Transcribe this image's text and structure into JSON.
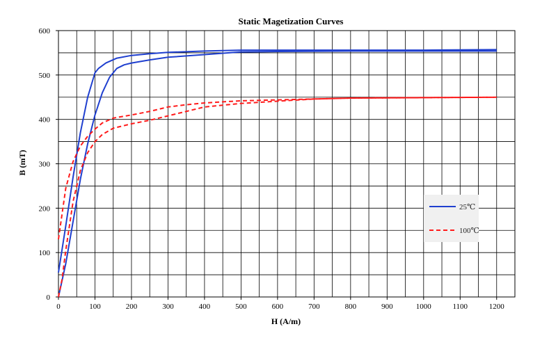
{
  "chart_data": {
    "type": "line",
    "title": "Static Magetization Curves",
    "xlabel": "H (A/m)",
    "ylabel": "B (mT)",
    "xlim": [
      0,
      1250
    ],
    "ylim": [
      0,
      600
    ],
    "x_ticks": [
      0,
      100,
      200,
      300,
      400,
      500,
      600,
      700,
      800,
      900,
      1000,
      1100,
      1200
    ],
    "y_ticks": [
      0,
      100,
      200,
      300,
      400,
      500,
      600
    ],
    "x_tick_labels": [
      "0",
      "100",
      "200",
      "300",
      "400",
      "500",
      "600",
      "700",
      "800",
      "900",
      "1000",
      "1100",
      "1200"
    ],
    "y_tick_labels": [
      "0",
      "100",
      "200",
      "300",
      "400",
      "500",
      "600"
    ],
    "grid": true,
    "legend_position": "right",
    "series": [
      {
        "name": "25℃",
        "color": "#1f3fcf",
        "style": "solid",
        "branches": [
          {
            "x": [
              0,
              20,
              40,
              60,
              80,
              100,
              110,
              130,
              160,
              200,
              250,
              300,
              400,
              500,
              600,
              800,
              1000,
              1200
            ],
            "y": [
              55,
              160,
              270,
              370,
              450,
              505,
              515,
              527,
              538,
              544,
              548,
              551,
              554,
              556,
              556,
              556,
              556,
              557
            ]
          },
          {
            "x": [
              0,
              20,
              40,
              60,
              80,
              100,
              120,
              140,
              160,
              180,
              200,
              250,
              300,
              400,
              500,
              600,
              800,
              1000,
              1200
            ],
            "y": [
              0,
              75,
              170,
              265,
              345,
              410,
              460,
              495,
              515,
              523,
              527,
              534,
              540,
              546,
              552,
              553,
              554,
              554,
              554
            ]
          }
        ]
      },
      {
        "name": "100℃",
        "color": "#ff1a1a",
        "style": "dashed",
        "branches": [
          {
            "x": [
              0,
              20,
              40,
              60,
              80,
              100,
              120,
              150,
              200,
              250,
              300,
              350,
              400,
              500,
              600,
              700,
              800,
              1000,
              1200
            ],
            "y": [
              130,
              245,
              305,
              340,
              362,
              378,
              392,
              403,
              410,
              418,
              428,
              433,
              437,
              442,
              444,
              446,
              448,
              449,
              450
            ]
          },
          {
            "x": [
              0,
              10,
              20,
              40,
              60,
              80,
              100,
              120,
              150,
              200,
              250,
              300,
              400,
              500,
              600,
              700,
              800,
              1000,
              1200
            ],
            "y": [
              0,
              40,
              105,
              215,
              285,
              325,
              350,
              366,
              380,
              390,
              398,
              408,
              428,
              436,
              441,
              446,
              448,
              449,
              450
            ]
          }
        ]
      }
    ]
  }
}
